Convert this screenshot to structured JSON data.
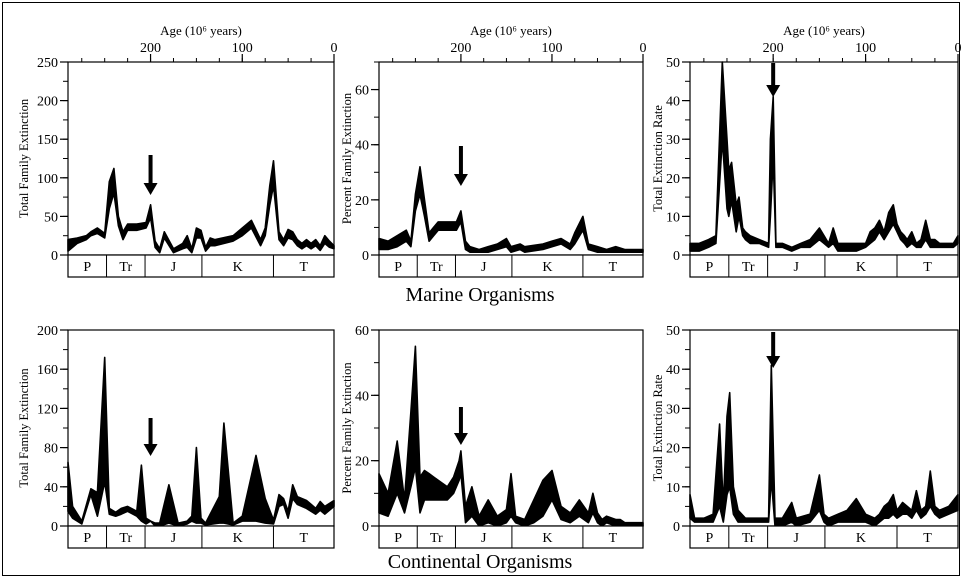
{
  "sections": {
    "marine": "Marine Organisms",
    "continental": "Continental Organisms"
  },
  "periods": [
    "P",
    "Tr",
    "J",
    "K",
    "T"
  ],
  "chart_data": [
    {
      "type": "area",
      "id": "marine-total",
      "top_axis_label": "Age (10⁶ years)",
      "ylabel": "Total Family Extinction",
      "xlim": [
        290,
        0
      ],
      "xticks": [
        200,
        100,
        0
      ],
      "ylim": [
        0,
        250
      ],
      "yticks": [
        0,
        50,
        100,
        150,
        200,
        250
      ],
      "arrow_at": 200,
      "x": [
        290,
        280,
        270,
        265,
        258,
        250,
        245,
        240,
        235,
        230,
        225,
        215,
        205,
        200,
        195,
        190,
        185,
        175,
        165,
        160,
        155,
        150,
        145,
        140,
        135,
        130,
        110,
        100,
        90,
        80,
        75,
        70,
        66,
        60,
        55,
        50,
        45,
        40,
        35,
        30,
        25,
        20,
        15,
        10,
        5,
        0
      ],
      "upper": [
        20,
        22,
        25,
        30,
        35,
        28,
        95,
        112,
        50,
        30,
        40,
        40,
        42,
        65,
        18,
        8,
        30,
        8,
        15,
        25,
        8,
        35,
        32,
        10,
        22,
        20,
        25,
        35,
        45,
        20,
        35,
        90,
        122,
        30,
        20,
        33,
        30,
        20,
        15,
        20,
        15,
        20,
        12,
        25,
        18,
        12
      ],
      "lower": [
        5,
        15,
        20,
        25,
        28,
        22,
        60,
        80,
        38,
        20,
        32,
        32,
        35,
        48,
        10,
        3,
        22,
        3,
        8,
        10,
        3,
        22,
        22,
        5,
        12,
        12,
        18,
        25,
        35,
        12,
        25,
        65,
        90,
        20,
        12,
        22,
        20,
        12,
        8,
        12,
        8,
        12,
        6,
        15,
        10,
        8
      ]
    },
    {
      "type": "area",
      "id": "marine-percent",
      "top_axis_label": "Age (10⁶ years)",
      "ylabel": "Percent Family Extinction",
      "xlim": [
        290,
        0
      ],
      "xticks": [
        200,
        100,
        0
      ],
      "ylim": [
        0,
        70
      ],
      "yticks": [
        0,
        20,
        40,
        60
      ],
      "arrow_at": 200,
      "x": [
        290,
        280,
        270,
        260,
        255,
        250,
        245,
        240,
        235,
        230,
        225,
        215,
        205,
        200,
        195,
        190,
        180,
        170,
        160,
        150,
        145,
        135,
        130,
        110,
        100,
        90,
        80,
        75,
        66,
        60,
        50,
        40,
        30,
        20,
        10,
        0
      ],
      "upper": [
        6,
        5,
        7,
        9,
        5,
        22,
        32,
        20,
        8,
        10,
        12,
        12,
        12,
        16,
        5,
        3,
        2,
        3,
        4,
        6,
        3,
        4,
        3,
        4,
        5,
        6,
        4,
        8,
        14,
        4,
        3,
        2,
        3,
        2,
        2,
        2
      ],
      "lower": [
        2,
        2,
        3,
        5,
        3,
        16,
        22,
        14,
        5,
        7,
        9,
        9,
        9,
        12,
        2,
        1,
        1,
        1,
        2,
        3,
        1,
        2,
        1,
        2,
        3,
        4,
        2,
        4,
        9,
        2,
        1,
        1,
        1,
        1,
        1,
        1
      ]
    },
    {
      "type": "area",
      "id": "marine-rate",
      "top_axis_label": "Age (10⁶ years)",
      "ylabel": "Total Extinction Rate",
      "xlim": [
        290,
        0
      ],
      "xticks": [
        200,
        100,
        0
      ],
      "ylim": [
        0,
        50
      ],
      "yticks": [
        0,
        10,
        20,
        30,
        40,
        50
      ],
      "arrow_at": 200,
      "x": [
        290,
        280,
        270,
        262,
        255,
        250,
        248,
        245,
        240,
        237,
        233,
        230,
        225,
        215,
        205,
        203,
        200,
        197,
        190,
        180,
        170,
        160,
        150,
        145,
        140,
        135,
        130,
        120,
        110,
        100,
        95,
        90,
        85,
        80,
        75,
        70,
        66,
        62,
        58,
        55,
        50,
        45,
        40,
        35,
        30,
        25,
        20,
        10,
        5,
        0
      ],
      "upper": [
        3,
        3,
        4,
        5,
        50,
        30,
        22,
        24,
        13,
        15,
        7,
        6,
        5,
        4,
        3,
        30,
        41,
        3,
        3,
        2,
        3,
        4,
        7,
        5,
        3,
        7,
        3,
        3,
        3,
        3,
        6,
        7,
        9,
        6,
        11,
        13,
        8,
        6,
        5,
        4,
        6,
        3,
        4,
        9,
        4,
        4,
        3,
        3,
        3,
        5
      ],
      "lower": [
        1,
        1,
        2,
        3,
        30,
        12,
        10,
        14,
        6,
        10,
        5,
        4,
        3,
        3,
        2,
        10,
        25,
        2,
        2,
        1,
        2,
        2,
        4,
        3,
        2,
        3,
        1,
        1,
        1,
        2,
        3,
        4,
        6,
        4,
        6,
        8,
        6,
        4,
        3,
        2,
        3,
        2,
        2,
        4,
        2,
        2,
        2,
        2,
        2,
        3
      ]
    },
    {
      "type": "area",
      "id": "continental-total",
      "ylabel": "Total Family Extinction",
      "xlim": [
        290,
        0
      ],
      "xticks": [
        200,
        100,
        0
      ],
      "ylim": [
        0,
        200
      ],
      "yticks": [
        0,
        40,
        80,
        120,
        160,
        200
      ],
      "arrow_at": 200,
      "x": [
        290,
        285,
        275,
        265,
        258,
        250,
        245,
        238,
        232,
        225,
        215,
        210,
        205,
        200,
        195,
        190,
        180,
        170,
        160,
        155,
        150,
        145,
        140,
        125,
        120,
        110,
        100,
        85,
        75,
        66,
        60,
        55,
        50,
        45,
        40,
        30,
        25,
        20,
        15,
        10,
        0
      ],
      "upper": [
        65,
        20,
        5,
        38,
        34,
        172,
        18,
        14,
        18,
        20,
        15,
        62,
        8,
        5,
        3,
        3,
        42,
        3,
        5,
        10,
        80,
        8,
        3,
        30,
        105,
        3,
        10,
        72,
        28,
        6,
        32,
        28,
        15,
        42,
        30,
        26,
        22,
        18,
        25,
        20,
        26
      ],
      "lower": [
        15,
        8,
        2,
        32,
        10,
        45,
        12,
        10,
        12,
        15,
        10,
        5,
        2,
        5,
        0,
        0,
        3,
        0,
        2,
        5,
        3,
        3,
        1,
        3,
        3,
        1,
        5,
        5,
        3,
        2,
        20,
        22,
        8,
        28,
        22,
        18,
        15,
        12,
        16,
        12,
        20
      ]
    },
    {
      "type": "area",
      "id": "continental-percent",
      "ylabel": "Percent Family Extinction",
      "xlim": [
        290,
        0
      ],
      "xticks": [
        200,
        100,
        0
      ],
      "ylim": [
        0,
        60
      ],
      "yticks": [
        0,
        20,
        40,
        60
      ],
      "arrow_at": 200,
      "x": [
        290,
        280,
        270,
        262,
        255,
        250,
        245,
        240,
        235,
        230,
        220,
        215,
        208,
        202,
        200,
        195,
        188,
        180,
        170,
        160,
        150,
        145,
        140,
        130,
        120,
        110,
        100,
        90,
        80,
        70,
        60,
        55,
        50,
        45,
        40,
        30,
        25,
        20,
        10,
        0
      ],
      "upper": [
        16,
        10,
        26,
        8,
        35,
        55,
        15,
        17,
        16,
        15,
        13,
        12,
        15,
        20,
        23,
        6,
        12,
        3,
        8,
        3,
        5,
        16,
        3,
        2,
        8,
        14,
        17,
        6,
        4,
        8,
        4,
        10,
        4,
        2,
        3,
        2,
        2,
        1,
        1,
        1
      ],
      "lower": [
        4,
        3,
        10,
        4,
        12,
        18,
        4,
        8,
        8,
        8,
        8,
        8,
        10,
        14,
        16,
        1,
        3,
        0,
        1,
        0,
        1,
        3,
        1,
        0,
        1,
        3,
        8,
        2,
        1,
        3,
        1,
        4,
        1,
        0,
        1,
        0,
        0,
        0,
        0,
        0
      ]
    },
    {
      "type": "area",
      "id": "continental-rate",
      "ylabel": "Total Extinction Rate",
      "xlim": [
        290,
        0
      ],
      "xticks": [
        200,
        100,
        0
      ],
      "ylim": [
        0,
        50
      ],
      "yticks": [
        0,
        10,
        20,
        30,
        40,
        50
      ],
      "arrow_at": 200,
      "x": [
        290,
        285,
        275,
        265,
        258,
        254,
        250,
        247,
        243,
        238,
        230,
        220,
        210,
        205,
        202,
        198,
        190,
        180,
        175,
        160,
        150,
        145,
        140,
        130,
        120,
        110,
        100,
        90,
        85,
        80,
        75,
        70,
        66,
        60,
        55,
        50,
        45,
        40,
        35,
        30,
        25,
        20,
        10,
        0
      ],
      "upper": [
        8,
        2,
        2,
        3,
        26,
        5,
        28,
        34,
        10,
        4,
        2,
        2,
        2,
        2,
        41,
        2,
        2,
        6,
        2,
        3,
        13,
        3,
        2,
        3,
        4,
        7,
        3,
        2,
        3,
        5,
        6,
        8,
        4,
        6,
        5,
        4,
        9,
        4,
        5,
        14,
        5,
        4,
        5,
        8
      ],
      "lower": [
        2,
        1,
        1,
        1,
        5,
        1,
        8,
        10,
        3,
        1,
        1,
        1,
        1,
        1,
        12,
        0,
        0,
        1,
        0,
        1,
        4,
        1,
        0,
        1,
        1,
        1,
        1,
        0,
        1,
        2,
        2,
        3,
        2,
        3,
        3,
        2,
        4,
        2,
        3,
        5,
        3,
        2,
        3,
        4
      ]
    }
  ]
}
